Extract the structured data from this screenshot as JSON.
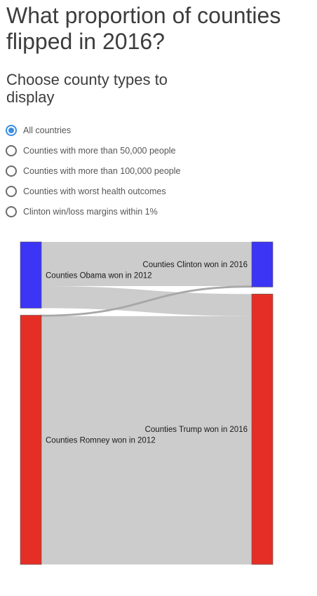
{
  "page": {
    "title": "What proportion of counties flipped in 2016?",
    "subtitle": "Choose county types to display"
  },
  "filters": {
    "selected_index": 0,
    "options": [
      "All countries",
      "Counties with more than 50,000 people",
      "Counties with more than 100,000 people",
      "Counties with worst health outcomes",
      "Clinton win/loss margins within 1%"
    ]
  },
  "colors": {
    "democrat": "#3c35f5",
    "republican": "#e52f26",
    "link": "#cccccc",
    "accent": "#3a8ee6"
  },
  "sankey": {
    "nodes": {
      "obama_2012": "Counties Obama won in 2012",
      "romney_2012": "Counties Romney won in 2012",
      "clinton_2016": "Counties Clinton won in 2016",
      "trump_2016": "Counties Trump won in 2016"
    },
    "flows": [
      {
        "from": "obama_2012",
        "to": "clinton_2016",
        "value": 0.14
      },
      {
        "from": "obama_2012",
        "to": "trump_2016",
        "value": 0.07
      },
      {
        "from": "romney_2012",
        "to": "clinton_2016",
        "value": 0.003
      },
      {
        "from": "romney_2012",
        "to": "trump_2016",
        "value": 0.787
      }
    ]
  }
}
